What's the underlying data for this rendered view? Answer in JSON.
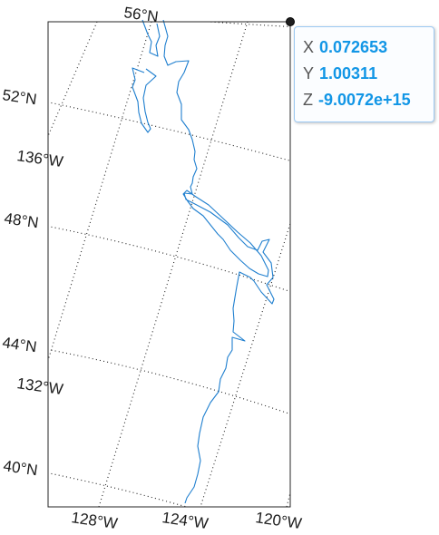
{
  "map": {
    "latitude_labels": [
      "56°N",
      "52°N",
      "48°N",
      "44°N",
      "40°N"
    ],
    "longitude_labels_left": [
      "136°W",
      "132°W"
    ],
    "longitude_labels_bottom": [
      "128°W",
      "124°W",
      "120°W"
    ],
    "colors": {
      "coastline": "#1f7fcf",
      "grid": "#222222",
      "frame": "#262626",
      "datatip_value": "#1296e6",
      "datatip_border": "#9cc9f2",
      "marker": "#1e1e1e"
    }
  },
  "datatip": {
    "x_key": "X",
    "x_value": "0.072653",
    "y_key": "Y",
    "y_value": "1.00311",
    "z_key": "Z",
    "z_value": "-9.0072e+15"
  }
}
